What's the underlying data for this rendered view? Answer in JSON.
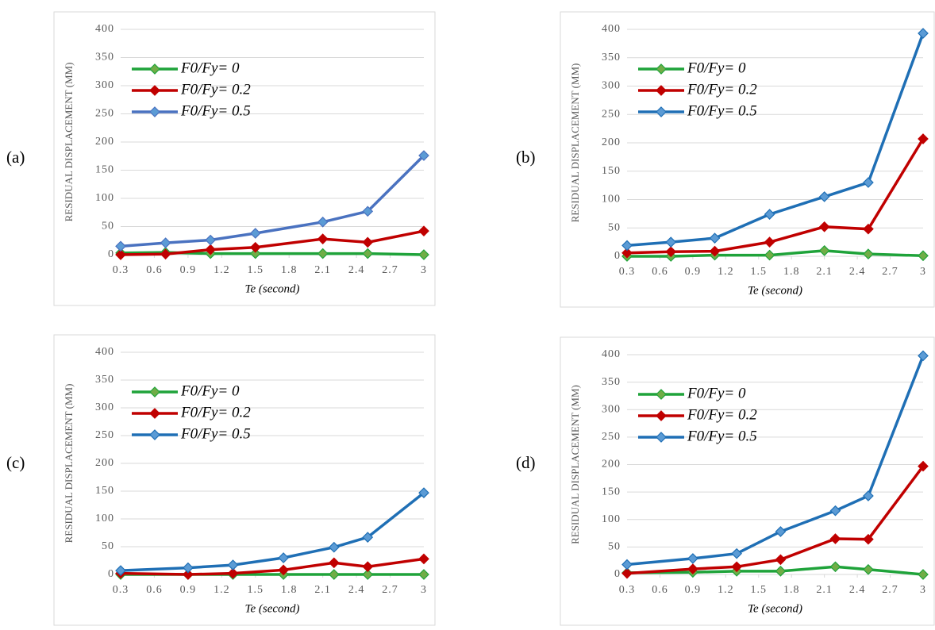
{
  "chart_data": [
    {
      "type": "line",
      "panel_label": "(a)",
      "xlabel": "Te (second)",
      "ylabel": "RESIDUAL DISPLACEMENT (MM)",
      "xlim": [
        0.3,
        3
      ],
      "xticks": [
        0.3,
        0.6,
        0.9,
        1.2,
        1.5,
        1.8,
        2.1,
        2.4,
        2.7,
        3
      ],
      "ylim": [
        0,
        400
      ],
      "yticks": [
        0,
        50,
        100,
        150,
        200,
        250,
        300,
        350,
        400
      ],
      "grid": true,
      "x": [
        0.3,
        0.7,
        1.1,
        1.5,
        2.1,
        2.5,
        3
      ],
      "series": [
        {
          "name": "F0/Fy= 0",
          "color": "#1fa33a",
          "marker_color": "#70ad47",
          "values": [
            3,
            4,
            2,
            2,
            2,
            2,
            0
          ]
        },
        {
          "name": "F0/Fy= 0.2",
          "color": "#c00000",
          "marker_color": "#c00000",
          "values": [
            0,
            1,
            9,
            13,
            28,
            22,
            42
          ]
        },
        {
          "name": "F0/Fy= 0.5",
          "color": "#4a72c0",
          "marker_color": "#5b9bd5",
          "values": [
            15,
            21,
            26,
            38,
            58,
            77,
            176
          ]
        }
      ]
    },
    {
      "type": "line",
      "panel_label": "(b)",
      "xlabel": "Te (second)",
      "ylabel": "RESIDUAL DISPLACEMENT (MM)",
      "xlim": [
        0.3,
        3
      ],
      "xticks": [
        0.3,
        0.6,
        0.9,
        1.2,
        1.5,
        1.8,
        2.1,
        2.4,
        2.7,
        3
      ],
      "ylim": [
        0,
        400
      ],
      "yticks": [
        0,
        50,
        100,
        150,
        200,
        250,
        300,
        350,
        400
      ],
      "grid": true,
      "x": [
        0.3,
        0.7,
        1.1,
        1.6,
        2.1,
        2.5,
        3
      ],
      "series": [
        {
          "name": "F0/Fy= 0",
          "color": "#1fa33a",
          "marker_color": "#70ad47",
          "values": [
            0,
            0,
            2,
            2,
            10,
            4,
            1
          ]
        },
        {
          "name": "F0/Fy= 0.2",
          "color": "#c00000",
          "marker_color": "#c00000",
          "values": [
            6,
            8,
            9,
            25,
            52,
            48,
            207
          ]
        },
        {
          "name": "F0/Fy= 0.5",
          "color": "#1f6fb5",
          "marker_color": "#5b9bd5",
          "values": [
            19,
            25,
            32,
            74,
            105,
            130,
            393
          ]
        }
      ]
    },
    {
      "type": "line",
      "panel_label": "(c)",
      "xlabel": "Te (second)",
      "ylabel": "RESIDUAL DISPLACEMENT (MM)",
      "xlim": [
        0.3,
        3
      ],
      "xticks": [
        0.3,
        0.6,
        0.9,
        1.2,
        1.5,
        1.8,
        2.1,
        2.4,
        2.7,
        3
      ],
      "ylim": [
        0,
        400
      ],
      "yticks": [
        0,
        50,
        100,
        150,
        200,
        250,
        300,
        350,
        400
      ],
      "grid": true,
      "x": [
        0.3,
        0.9,
        1.3,
        1.75,
        2.2,
        2.5,
        3
      ],
      "series": [
        {
          "name": "F0/Fy= 0",
          "color": "#1fa33a",
          "marker_color": "#70ad47",
          "values": [
            0,
            0,
            0,
            0,
            0,
            0,
            0
          ]
        },
        {
          "name": "F0/Fy= 0.2",
          "color": "#c00000",
          "marker_color": "#c00000",
          "values": [
            2,
            0,
            2,
            8,
            21,
            14,
            28
          ]
        },
        {
          "name": "F0/Fy= 0.5",
          "color": "#1f6fb5",
          "marker_color": "#5b9bd5",
          "values": [
            7,
            12,
            17,
            30,
            49,
            67,
            147
          ]
        }
      ]
    },
    {
      "type": "line",
      "panel_label": "(d)",
      "xlabel": "Te (second)",
      "ylabel": "RESIDUAL DISPLACEMENT (MM)",
      "xlim": [
        0.3,
        3
      ],
      "xticks": [
        0.3,
        0.6,
        0.9,
        1.2,
        1.5,
        1.8,
        2.1,
        2.4,
        2.7,
        3
      ],
      "ylim": [
        0,
        400
      ],
      "yticks": [
        0,
        50,
        100,
        150,
        200,
        250,
        300,
        350,
        400
      ],
      "grid": true,
      "x": [
        0.3,
        0.9,
        1.3,
        1.7,
        2.2,
        2.5,
        3
      ],
      "series": [
        {
          "name": "F0/Fy= 0",
          "color": "#1fa33a",
          "marker_color": "#70ad47",
          "values": [
            3,
            4,
            6,
            6,
            14,
            9,
            0
          ]
        },
        {
          "name": "F0/Fy= 0.2",
          "color": "#c00000",
          "marker_color": "#c00000",
          "values": [
            2,
            10,
            14,
            27,
            65,
            64,
            197
          ]
        },
        {
          "name": "F0/Fy= 0.5",
          "color": "#1f6fb5",
          "marker_color": "#5b9bd5",
          "values": [
            18,
            29,
            38,
            78,
            116,
            143,
            398
          ]
        }
      ]
    }
  ]
}
